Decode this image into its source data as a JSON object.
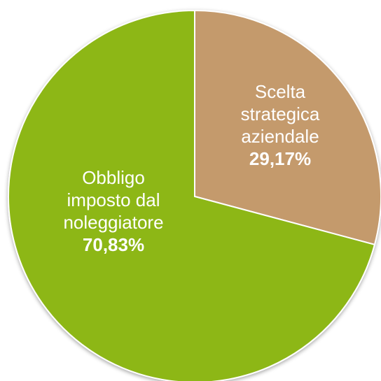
{
  "chart_data": {
    "type": "pie",
    "title": "",
    "slices": [
      {
        "label_lines": [
          "Obbligo",
          "imposto dal",
          "noleggiatore"
        ],
        "value_label": "70,83%",
        "value": 70.83,
        "color": "#8db719"
      },
      {
        "label_lines": [
          "Scelta",
          "strategica",
          "aziendale"
        ],
        "value_label": "29,17%",
        "value": 29.17,
        "color": "#c49a6c"
      }
    ],
    "legend": "none"
  }
}
